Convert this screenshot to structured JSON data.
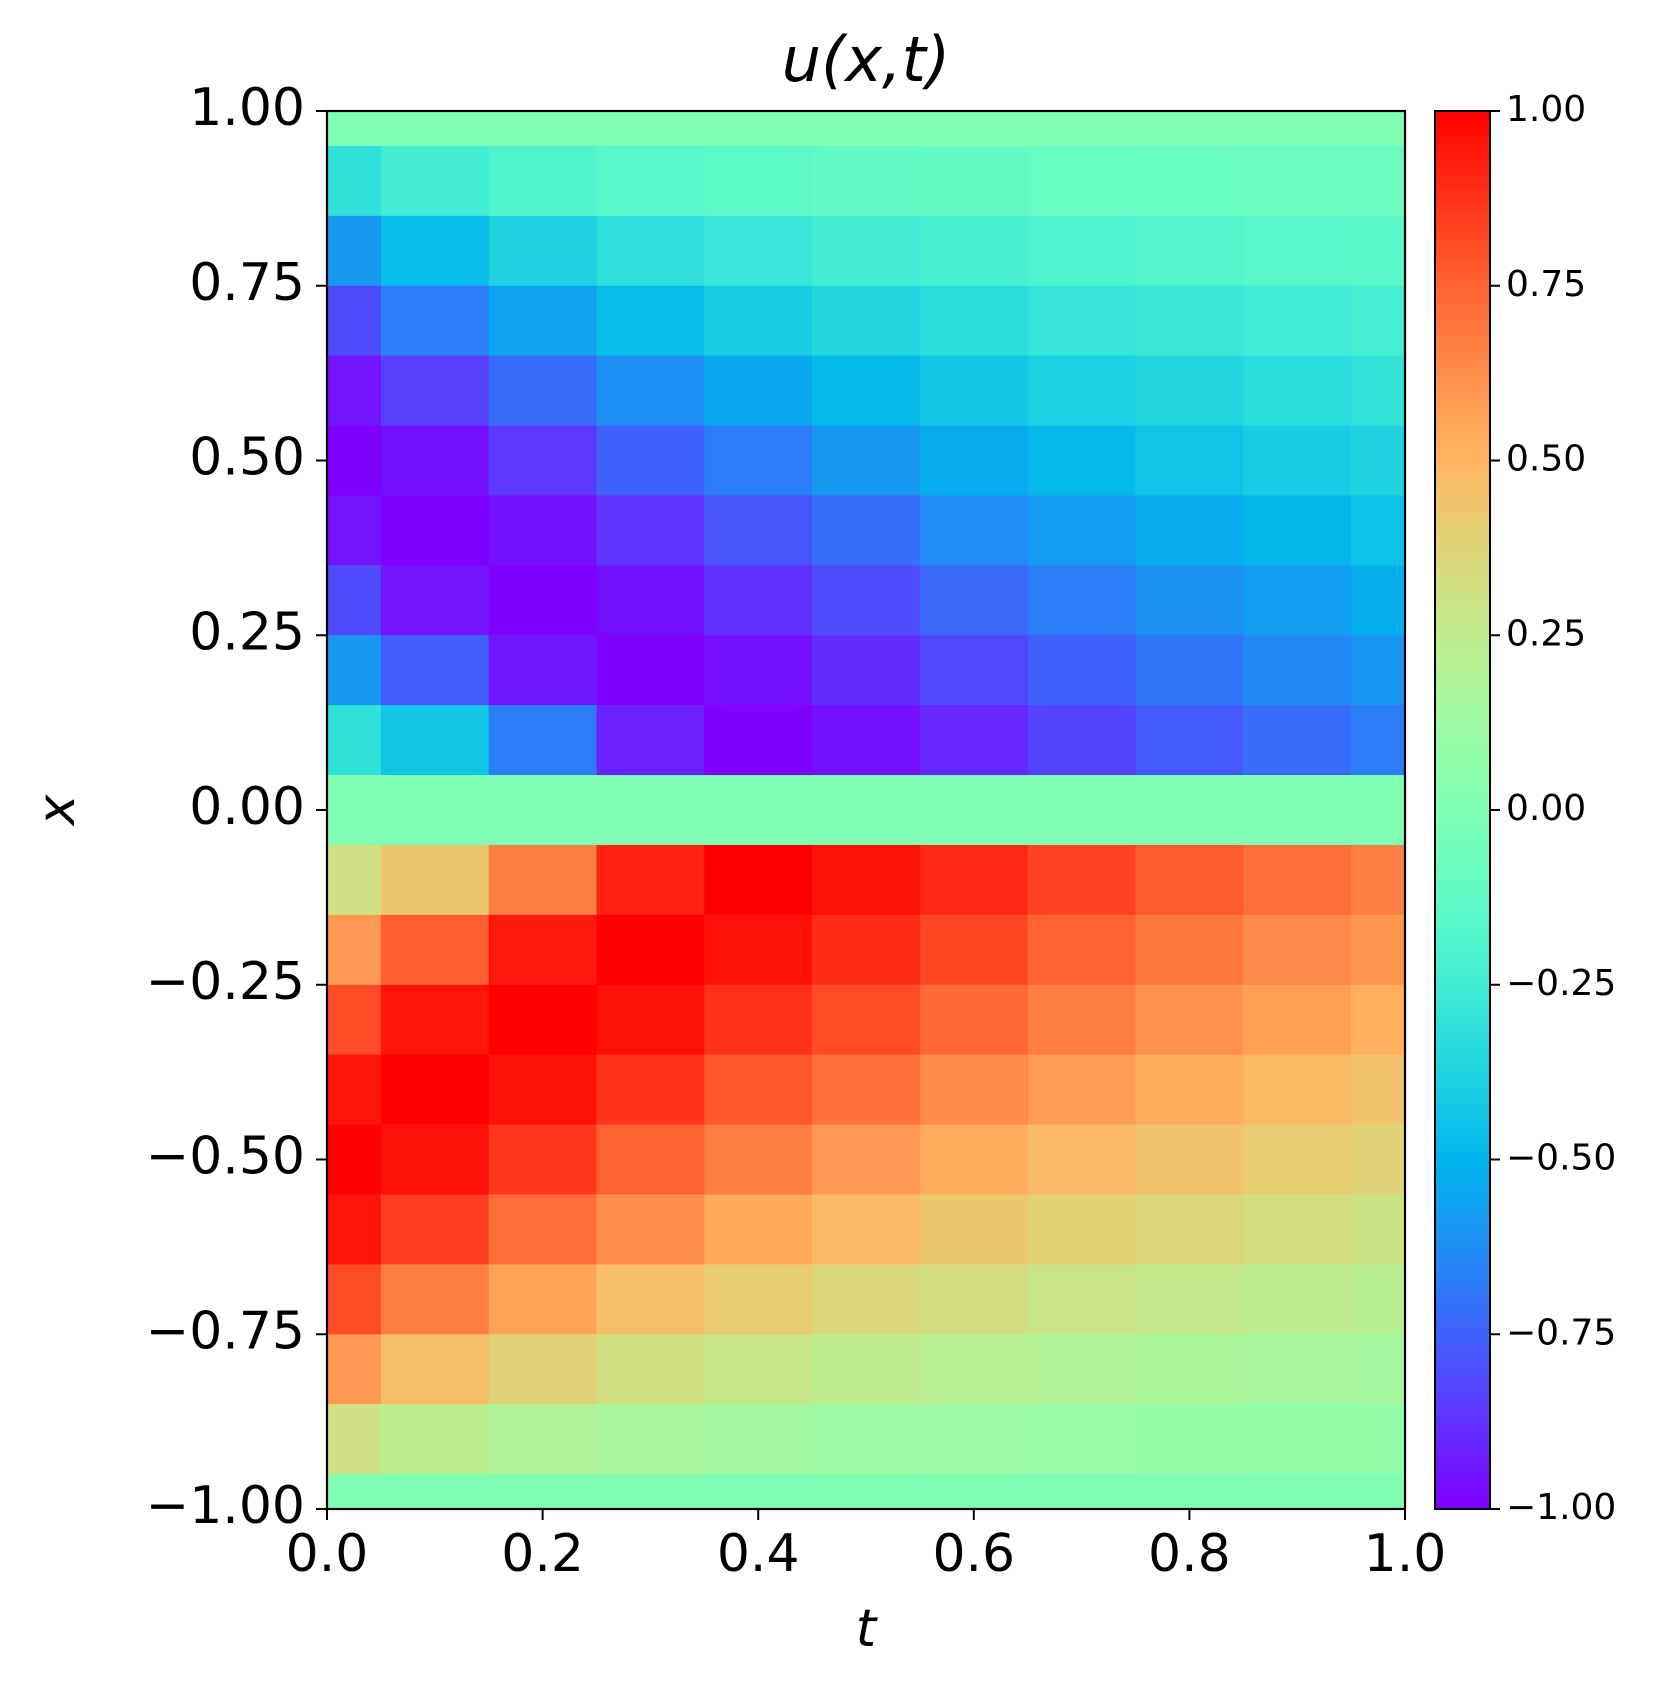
{
  "chart_data": {
    "type": "heatmap",
    "title": "u(x,t)",
    "xlabel": "t",
    "ylabel": "x",
    "x": [
      0,
      0.1,
      0.2,
      0.3,
      0.4,
      0.5,
      0.6,
      0.7,
      0.8,
      0.9,
      1.0
    ],
    "y": [
      1.0,
      0.9,
      0.8,
      0.7,
      0.6,
      0.5,
      0.4,
      0.3,
      0.2,
      0.1,
      0,
      -0.1,
      -0.2,
      -0.3,
      -0.4,
      -0.5,
      -0.6,
      -0.7,
      -0.8,
      -0.9,
      -1.0
    ],
    "z": [
      [
        0,
        0,
        0,
        0,
        0,
        0,
        0,
        0,
        0,
        0,
        0
      ],
      [
        -0.31,
        -0.24,
        -0.19,
        -0.16,
        -0.14,
        -0.12,
        -0.11,
        -0.1,
        -0.09,
        -0.08,
        -0.08
      ],
      [
        -0.59,
        -0.47,
        -0.38,
        -0.32,
        -0.28,
        -0.24,
        -0.22,
        -0.2,
        -0.18,
        -0.16,
        -0.15
      ],
      [
        -0.81,
        -0.67,
        -0.56,
        -0.47,
        -0.41,
        -0.36,
        -0.33,
        -0.29,
        -0.27,
        -0.25,
        -0.23
      ],
      [
        -0.95,
        -0.84,
        -0.72,
        -0.62,
        -0.54,
        -0.48,
        -0.43,
        -0.39,
        -0.36,
        -0.33,
        -0.3
      ],
      [
        -1.0,
        -0.96,
        -0.86,
        -0.75,
        -0.67,
        -0.59,
        -0.53,
        -0.48,
        -0.44,
        -0.41,
        -0.38
      ],
      [
        -0.95,
        -1.0,
        -0.96,
        -0.87,
        -0.78,
        -0.71,
        -0.63,
        -0.58,
        -0.53,
        -0.49,
        -0.45
      ],
      [
        -0.81,
        -0.95,
        -1.0,
        -0.96,
        -0.88,
        -0.81,
        -0.73,
        -0.67,
        -0.61,
        -0.57,
        -0.52
      ],
      [
        -0.59,
        -0.76,
        -0.94,
        -1.0,
        -0.96,
        -0.89,
        -0.82,
        -0.75,
        -0.69,
        -0.64,
        -0.6
      ],
      [
        -0.31,
        -0.43,
        -0.67,
        -0.92,
        -1.0,
        -0.96,
        -0.9,
        -0.83,
        -0.77,
        -0.72,
        -0.67
      ],
      [
        0,
        0,
        0,
        0,
        0,
        0,
        0,
        0,
        0,
        0,
        0
      ],
      [
        0.31,
        0.43,
        0.67,
        0.92,
        1.0,
        0.96,
        0.9,
        0.83,
        0.77,
        0.72,
        0.67
      ],
      [
        0.59,
        0.76,
        0.94,
        1.0,
        0.96,
        0.89,
        0.82,
        0.75,
        0.69,
        0.64,
        0.6
      ],
      [
        0.81,
        0.95,
        1.0,
        0.96,
        0.88,
        0.81,
        0.73,
        0.67,
        0.61,
        0.57,
        0.52
      ],
      [
        0.95,
        1.0,
        0.96,
        0.87,
        0.78,
        0.71,
        0.63,
        0.58,
        0.53,
        0.49,
        0.45
      ],
      [
        1.0,
        0.96,
        0.86,
        0.75,
        0.67,
        0.59,
        0.53,
        0.48,
        0.44,
        0.41,
        0.38
      ],
      [
        0.95,
        0.84,
        0.72,
        0.62,
        0.54,
        0.48,
        0.43,
        0.39,
        0.36,
        0.33,
        0.3
      ],
      [
        0.81,
        0.67,
        0.56,
        0.47,
        0.41,
        0.36,
        0.33,
        0.29,
        0.27,
        0.25,
        0.23
      ],
      [
        0.59,
        0.47,
        0.38,
        0.32,
        0.28,
        0.24,
        0.22,
        0.2,
        0.18,
        0.16,
        0.15
      ],
      [
        0.31,
        0.24,
        0.19,
        0.16,
        0.14,
        0.12,
        0.11,
        0.1,
        0.09,
        0.08,
        0.08
      ],
      [
        0,
        0,
        0,
        0,
        0,
        0,
        0,
        0,
        0,
        0,
        0
      ]
    ],
    "colormap": "rainbow",
    "xlim": [
      0,
      1
    ],
    "ylim": [
      -1,
      1
    ],
    "clim": [
      -1,
      1
    ],
    "xticks": [
      {
        "value": 0,
        "label": "0.0"
      },
      0.2,
      0.4,
      0.6,
      0.8,
      {
        "value": 1,
        "label": "1.0"
      }
    ],
    "yticks": [
      {
        "value": -1,
        "label": "−1.00"
      },
      {
        "value": -0.75,
        "label": "−0.75"
      },
      {
        "value": -0.5,
        "label": "−0.50"
      },
      {
        "value": -0.25,
        "label": "−0.25"
      },
      {
        "value": 0,
        "label": "0.00"
      },
      0.25,
      {
        "value": 0.5,
        "label": "0.50"
      },
      0.75,
      {
        "value": 1,
        "label": "1.00"
      }
    ],
    "cticks": [
      {
        "value": -1,
        "label": "−1.00"
      },
      {
        "value": -0.75,
        "label": "−0.75"
      },
      {
        "value": -0.5,
        "label": "−0.50"
      },
      {
        "value": -0.25,
        "label": "−0.25"
      },
      {
        "value": 0,
        "label": "0.00"
      },
      0.25,
      {
        "value": 0.5,
        "label": "0.50"
      },
      0.75,
      {
        "value": 1,
        "label": "1.00"
      }
    ]
  }
}
